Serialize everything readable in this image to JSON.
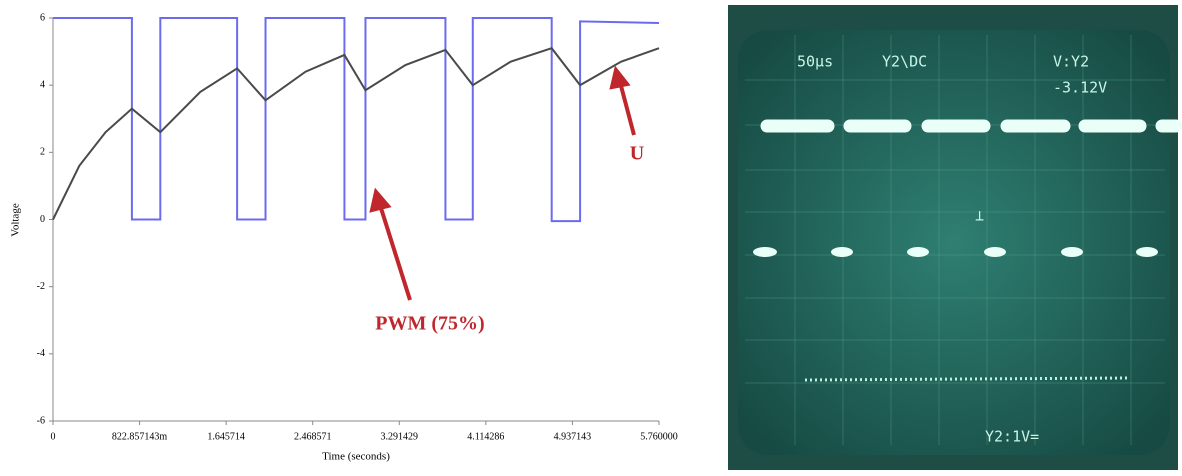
{
  "chart_data": {
    "type": "line",
    "xlabel": "Time (seconds)",
    "ylabel": "Voltage",
    "xlim": [
      0,
      5.76
    ],
    "ylim": [
      -6,
      6
    ],
    "xticks": [
      0,
      {
        "value": 0.822857143,
        "label": "822.857143m"
      },
      1.645714,
      2.468571,
      3.291429,
      4.114286,
      4.937143,
      {
        "value": 5.76,
        "label": "5.760000"
      }
    ],
    "yticks": [
      -6,
      -4,
      -2,
      0,
      2,
      4,
      6
    ],
    "series": [
      {
        "name": "PWM (75%)",
        "color": "#6b6bf0",
        "x": [
          0,
          0.75,
          0.75,
          1.02,
          1.02,
          1.75,
          1.75,
          2.02,
          2.02,
          2.77,
          2.77,
          2.97,
          2.97,
          3.73,
          3.73,
          3.99,
          3.99,
          4.74,
          4.74,
          5.01,
          5.01,
          5.76
        ],
        "values": [
          6,
          6,
          0,
          0,
          6,
          6,
          0,
          0,
          6,
          6,
          0,
          0,
          6,
          6,
          0,
          0,
          6,
          6,
          -0.05,
          -0.05,
          5.9,
          5.85
        ]
      },
      {
        "name": "U",
        "color": "#4a4a4a",
        "x": [
          0,
          0.25,
          0.5,
          0.75,
          1.02,
          1.4,
          1.75,
          2.02,
          2.4,
          2.77,
          2.97,
          3.35,
          3.73,
          3.99,
          4.35,
          4.74,
          5.01,
          5.4,
          5.76
        ],
        "values": [
          0,
          1.6,
          2.6,
          3.3,
          2.6,
          3.8,
          4.5,
          3.55,
          4.4,
          4.9,
          3.85,
          4.6,
          5.05,
          4.0,
          4.7,
          5.1,
          4.0,
          4.7,
          5.1
        ]
      }
    ]
  },
  "oscilloscope": {
    "timebase": "50μs",
    "channel": "Y2\\DC",
    "cursor": "V:Y2",
    "cursor_value": "-3.12V",
    "ground_marker": "⊥",
    "scale": "Y2:1V="
  }
}
